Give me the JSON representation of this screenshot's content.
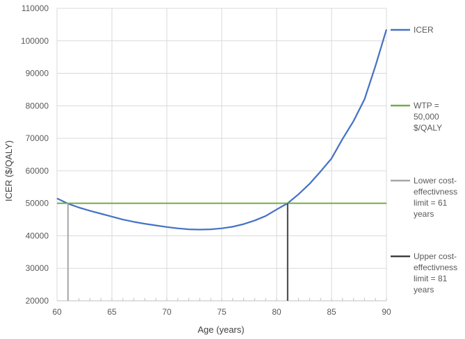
{
  "chart_data": {
    "type": "line",
    "xlabel": "Age (years)",
    "ylabel": "ICER ($/QALY)",
    "xlim": [
      60,
      90
    ],
    "ylim": [
      20000,
      110000
    ],
    "x_ticks": [
      "60",
      "65",
      "70",
      "75",
      "80",
      "85",
      "90"
    ],
    "y_ticks": [
      "20000",
      "30000",
      "40000",
      "50000",
      "60000",
      "70000",
      "80000",
      "90000",
      "100000",
      "110000"
    ],
    "grid": true,
    "legend_position": "right",
    "series": [
      {
        "name": "ICER",
        "color": "#4472c4",
        "x": [
          60,
          61,
          62,
          63,
          64,
          65,
          66,
          67,
          68,
          69,
          70,
          71,
          72,
          73,
          74,
          75,
          76,
          77,
          78,
          79,
          80,
          81,
          82,
          83,
          84,
          85,
          86,
          87,
          88,
          89,
          90
        ],
        "y": [
          51500,
          49900,
          48700,
          47700,
          46800,
          45900,
          45000,
          44300,
          43700,
          43200,
          42700,
          42300,
          42000,
          41900,
          42000,
          42300,
          42800,
          43600,
          44700,
          46100,
          48100,
          50000,
          52800,
          56000,
          59800,
          63800,
          69800,
          75300,
          82000,
          92300,
          103500
        ]
      },
      {
        "name": "WTP =\n50,000\n$/QALY",
        "color": "#70ad47",
        "x": [
          60,
          90
        ],
        "y": [
          50000,
          50000
        ]
      },
      {
        "name": "Lower cost-\neffectivness\nlimit = 61\nyears",
        "color": "#a6a6a6",
        "x": [
          61,
          61
        ],
        "y": [
          20000,
          50000
        ]
      },
      {
        "name": "Upper cost-\neffectivness\nlimit = 81\nyears",
        "color": "#404040",
        "x": [
          81,
          81
        ],
        "y": [
          20000,
          50000
        ]
      }
    ]
  }
}
